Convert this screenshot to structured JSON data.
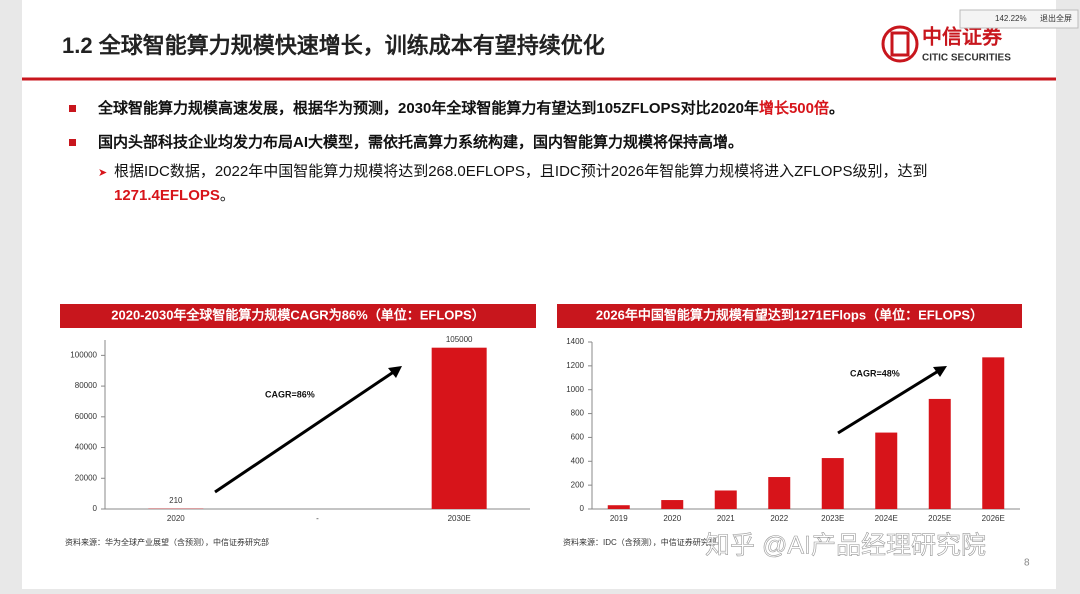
{
  "header": {
    "title": "1.2 全球智能算力规模快速增长，训练成本有望持续优化",
    "logo_cn": "中信证券",
    "logo_en": "CITIC SECURITIES"
  },
  "toolbar": {
    "zoom": "142.22%",
    "exit": "退出全屏"
  },
  "bullets": [
    {
      "text": "全球智能算力规模高速发展，根据华为预测，2030年全球智能算力有望达到105ZFLOPS对比2020年",
      "highlight": "增长500倍",
      "tail": "。"
    },
    {
      "text": "国内头部科技企业均发力布局AI大模型，需依托高算力系统构建，国内智能算力规模将保持高增。"
    }
  ],
  "sub_bullet": {
    "text": "根据IDC数据，2022年中国智能算力规模将达到268.0EFLOPS，且IDC预计2026年智能算力规模将进入ZFLOPS级别，达到",
    "highlight": "1271.4EFLOPS",
    "tail": "。"
  },
  "chart_data": [
    {
      "type": "bar",
      "title": "2020-2030年全球智能算力规模CAGR为86%（单位：EFLOPS）",
      "categories": [
        "2020",
        "-",
        "2030E"
      ],
      "values": [
        210,
        null,
        105000
      ],
      "color": "#d7141a",
      "ylim": [
        0,
        110000
      ],
      "yticks": [
        0,
        20000,
        40000,
        60000,
        80000,
        100000
      ],
      "annotation": "CAGR=86%",
      "source": "资料来源：华为全球产业展望（含预测），中信证券研究部",
      "data_labels": true
    },
    {
      "type": "bar",
      "title": "2026年中国智能算力规模有望达到1271EFlops（单位：EFLOPS）",
      "categories": [
        "2019",
        "2020",
        "2021",
        "2022",
        "2023E",
        "2024E",
        "2025E",
        "2026E"
      ],
      "values": [
        31.7,
        75,
        155.2,
        268,
        427,
        640.7,
        922.8,
        1271.4
      ],
      "color": "#d7141a",
      "ylim": [
        0,
        1400
      ],
      "yticks": [
        0,
        200,
        400,
        600,
        800,
        1000,
        1200,
        1400
      ],
      "annotation": "CAGR=48%",
      "source": "资料来源：IDC（含预测），中信证券研究部",
      "data_labels": false
    }
  ],
  "watermark": "知乎 @AI产品经理研究院",
  "page_number": "8"
}
